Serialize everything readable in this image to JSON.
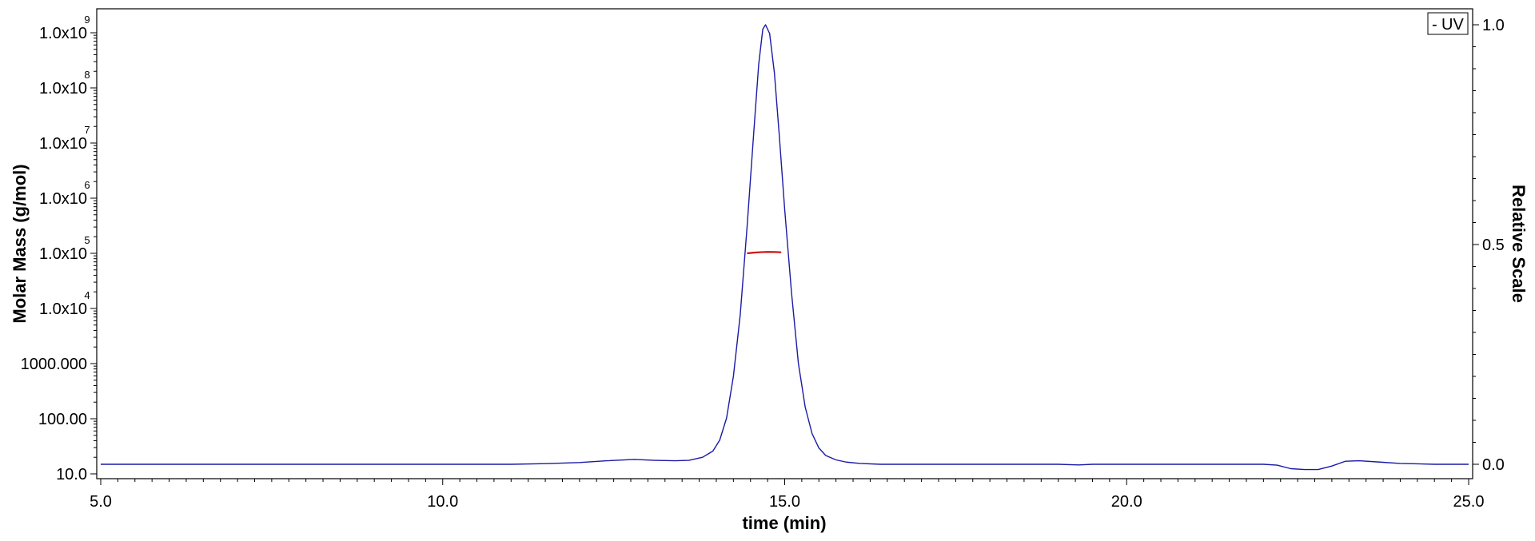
{
  "chart_data": {
    "type": "line",
    "xlabel": "time (min)",
    "ylabel_left": "Molar Mass (g/mol)",
    "ylabel_right": "Relative Scale",
    "xlim": [
      5.0,
      25.0
    ],
    "ylim_left": [
      10.0,
      1000000000.0
    ],
    "ylim_right": [
      0.0,
      1.0
    ],
    "yscale_left": "log",
    "grid": false,
    "legend": {
      "position": "top-right",
      "entries": [
        {
          "marker": "-",
          "label": "UV"
        }
      ]
    },
    "x_ticks": [
      "5.0",
      "10.0",
      "15.0",
      "20.0",
      "25.0"
    ],
    "x_tick_values": [
      5.0,
      10.0,
      15.0,
      20.0,
      25.0
    ],
    "y_left_ticks": [
      {
        "value": 10,
        "mantissa": "10.0",
        "exponent": ""
      },
      {
        "value": 100,
        "mantissa": "100.00",
        "exponent": ""
      },
      {
        "value": 1000,
        "mantissa": "1000.000",
        "exponent": ""
      },
      {
        "value": 10000,
        "mantissa": "1.0x10",
        "exponent": "4"
      },
      {
        "value": 100000,
        "mantissa": "1.0x10",
        "exponent": "5"
      },
      {
        "value": 1000000,
        "mantissa": "1.0x10",
        "exponent": "6"
      },
      {
        "value": 10000000,
        "mantissa": "1.0x10",
        "exponent": "7"
      },
      {
        "value": 100000000,
        "mantissa": "1.0x10",
        "exponent": "8"
      },
      {
        "value": 1000000000,
        "mantissa": "1.0x10",
        "exponent": "9"
      }
    ],
    "y_right_ticks": [
      "0.0",
      "0.5",
      "1.0"
    ],
    "y_right_tick_values": [
      0.0,
      0.5,
      1.0
    ],
    "series": [
      {
        "name": "UV",
        "axis": "right",
        "color": "#1a1aa6",
        "x": [
          5.0,
          6.0,
          7.0,
          8.0,
          9.0,
          10.0,
          11.0,
          11.5,
          12.0,
          12.4,
          12.8,
          13.1,
          13.4,
          13.6,
          13.8,
          13.95,
          14.05,
          14.15,
          14.25,
          14.35,
          14.45,
          14.55,
          14.62,
          14.68,
          14.72,
          14.78,
          14.85,
          14.92,
          15.0,
          15.1,
          15.2,
          15.3,
          15.4,
          15.5,
          15.6,
          15.75,
          15.9,
          16.1,
          16.4,
          17.0,
          18.0,
          19.0,
          19.3,
          19.5,
          20.0,
          21.0,
          22.0,
          22.2,
          22.4,
          22.6,
          22.8,
          23.0,
          23.2,
          23.4,
          23.7,
          24.0,
          24.5,
          25.0
        ],
        "y": [
          0.0,
          0.0,
          0.0,
          0.0,
          0.0,
          0.0,
          0.0,
          0.0015,
          0.004,
          0.008,
          0.011,
          0.009,
          0.008,
          0.009,
          0.016,
          0.03,
          0.055,
          0.105,
          0.2,
          0.34,
          0.54,
          0.76,
          0.91,
          0.99,
          1.0,
          0.98,
          0.89,
          0.75,
          0.58,
          0.39,
          0.23,
          0.13,
          0.07,
          0.037,
          0.02,
          0.01,
          0.005,
          0.002,
          0.0,
          0.0,
          0.0,
          0.0,
          -0.0015,
          0.0,
          0.0,
          0.0,
          0.0,
          -0.002,
          -0.01,
          -0.012,
          -0.012,
          -0.004,
          0.007,
          0.008,
          0.005,
          0.002,
          0.0,
          0.0
        ]
      },
      {
        "name": "Molar Mass",
        "axis": "left",
        "color": "#d01010",
        "x": [
          14.45,
          14.55,
          14.65,
          14.75,
          14.85,
          14.95
        ],
        "y": [
          100000,
          103000,
          105000,
          106000,
          105500,
          104500
        ]
      }
    ]
  }
}
